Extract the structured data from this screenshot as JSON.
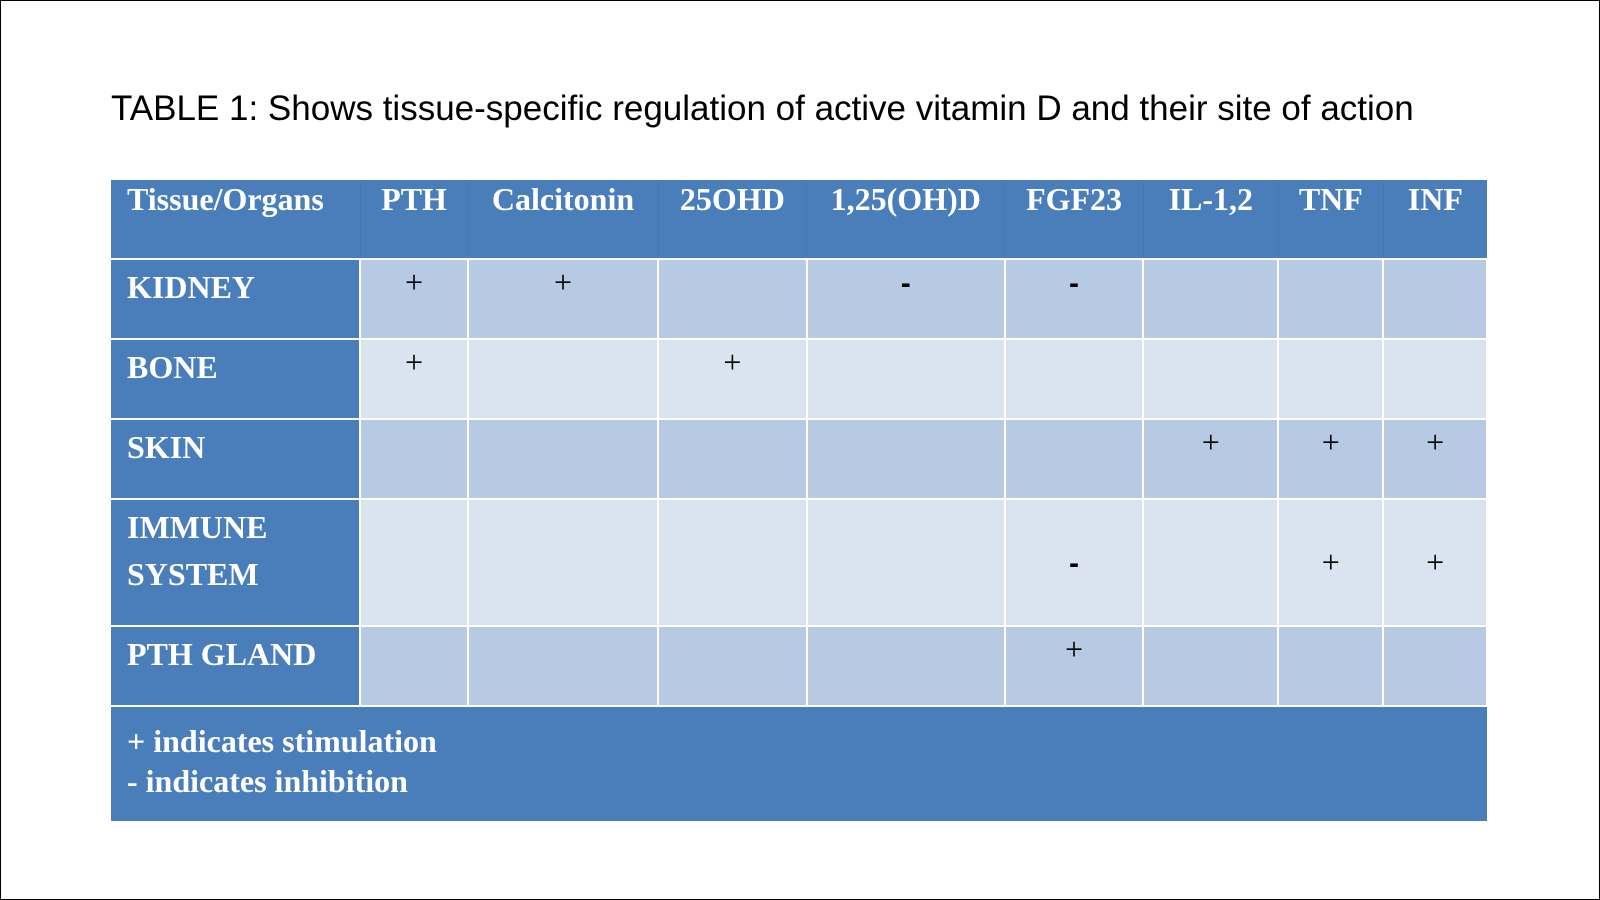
{
  "title": "TABLE 1: Shows tissue-specific regulation of active vitamin D and their site of action",
  "colors": {
    "header_bg": "#4a7ebb",
    "row_dark": "#b7cae3",
    "row_light": "#dae4f1",
    "text_light": "#ffffff",
    "text_dark": "#000000"
  },
  "table": {
    "headers": [
      "Tissue/Organs",
      "PTH",
      "Calcitonin",
      "25OHD",
      "1,25(OH)D",
      "FGF23",
      "IL-1,2",
      "TNF",
      "INF"
    ],
    "rows": [
      {
        "organ": "KIDNEY",
        "cells": [
          "+",
          "+",
          "",
          "-",
          "-",
          "",
          "",
          ""
        ]
      },
      {
        "organ": "BONE",
        "cells": [
          "+",
          "",
          "+",
          "",
          "",
          "",
          "",
          ""
        ]
      },
      {
        "organ": "SKIN",
        "cells": [
          "",
          "",
          "",
          "",
          "",
          "+",
          "+",
          "+"
        ]
      },
      {
        "organ": "IMMUNE SYSTEM",
        "cells": [
          "",
          "",
          "",
          "",
          "-",
          "",
          "+",
          "+"
        ]
      },
      {
        "organ": "PTH GLAND",
        "cells": [
          "",
          "",
          "",
          "",
          "+",
          "",
          "",
          ""
        ]
      }
    ],
    "legend": [
      "+ indicates stimulation",
      "- indicates inhibition"
    ]
  }
}
